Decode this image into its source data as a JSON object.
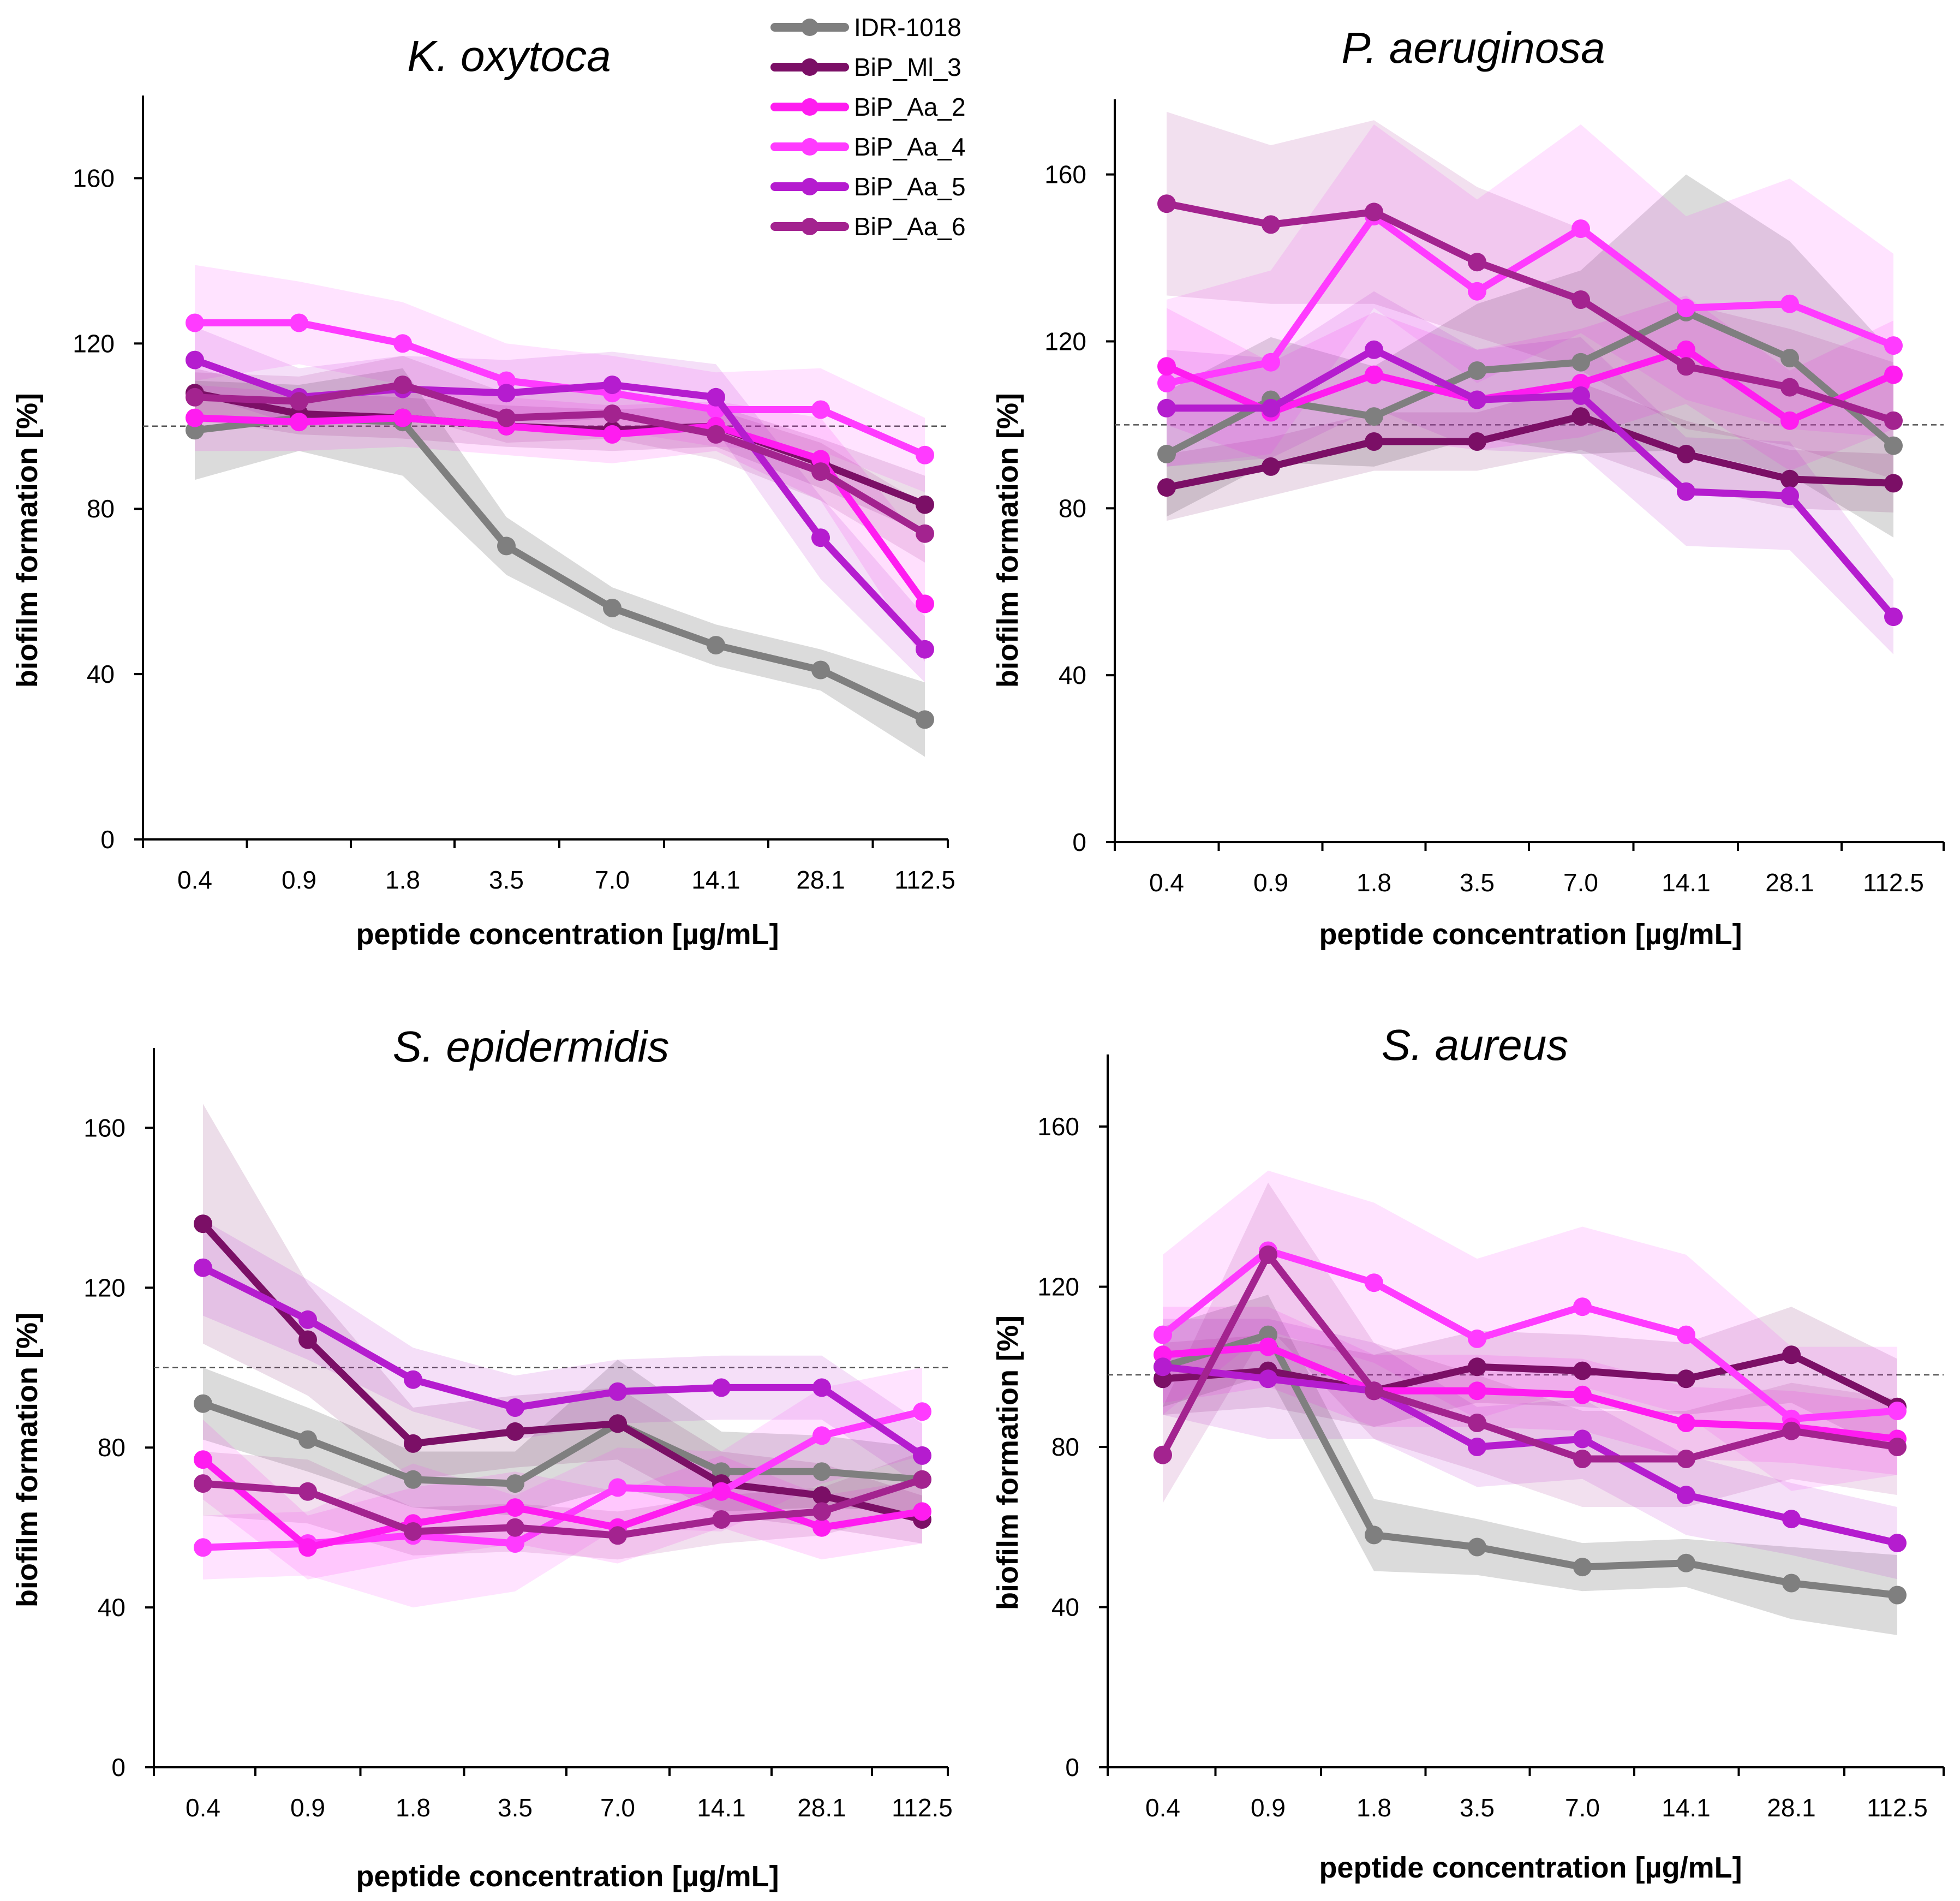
{
  "legend": [
    {
      "name": "IDR-1018",
      "color": "#7f7f7f"
    },
    {
      "name": "BiP_Ml_3",
      "color": "#7b0f66"
    },
    {
      "name": "BiP_Aa_2",
      "color": "#ff1cf0"
    },
    {
      "name": "BiP_Aa_4",
      "color": "#ff3bff"
    },
    {
      "name": "BiP_Aa_5",
      "color": "#b51ccf"
    },
    {
      "name": "BiP_Aa_6",
      "color": "#a3238f"
    }
  ],
  "chart_data": [
    {
      "type": "line",
      "title": "K. oxytoca",
      "xlabel": "peptide concentration [µg/mL]",
      "ylabel": "biofilm formation [%]",
      "categories": [
        "0.4",
        "0.9",
        "1.8",
        "3.5",
        "7.0",
        "14.1",
        "28.1",
        "112.5"
      ],
      "yticks": [
        "0",
        "40",
        "80",
        "120",
        "160"
      ],
      "ylim": [
        0,
        180
      ],
      "reference": 100,
      "series": [
        {
          "name": "IDR-1018",
          "values": [
            99,
            102,
            101,
            71,
            56,
            47,
            41,
            29
          ],
          "band": [
            12,
            8,
            13,
            7,
            5,
            5,
            5,
            9
          ]
        },
        {
          "name": "BiP_Ml_3",
          "values": [
            108,
            103,
            102,
            100,
            99,
            100,
            91,
            81
          ],
          "band": [
            6,
            5,
            5,
            5,
            5,
            5,
            6,
            7
          ]
        },
        {
          "name": "BiP_Aa_2",
          "values": [
            102,
            101,
            102,
            100,
            98,
            100,
            92,
            57
          ],
          "band": [
            8,
            7,
            7,
            7,
            7,
            6,
            10,
            14
          ]
        },
        {
          "name": "BiP_Aa_4",
          "values": [
            125,
            125,
            120,
            111,
            108,
            104,
            104,
            93
          ],
          "band": [
            14,
            10,
            10,
            9,
            9,
            9,
            10,
            9
          ]
        },
        {
          "name": "BiP_Aa_5",
          "values": [
            116,
            107,
            109,
            108,
            110,
            107,
            73,
            46
          ],
          "band": [
            8,
            7,
            8,
            8,
            8,
            8,
            10,
            8
          ]
        },
        {
          "name": "BiP_Aa_6",
          "values": [
            107,
            106,
            110,
            102,
            103,
            98,
            89,
            74
          ],
          "band": [
            6,
            6,
            7,
            6,
            6,
            6,
            7,
            7
          ]
        }
      ]
    },
    {
      "type": "line",
      "title": "P. aeruginosa",
      "xlabel": "peptide concentration [µg/mL]",
      "ylabel": "biofilm formation [%]",
      "categories": [
        "0.4",
        "0.9",
        "1.8",
        "3.5",
        "7.0",
        "14.1",
        "28.1",
        "112.5"
      ],
      "yticks": [
        "0",
        "40",
        "80",
        "120",
        "160"
      ],
      "ylim": [
        0,
        178
      ],
      "reference": 100,
      "series": [
        {
          "name": "IDR-1018",
          "values": [
            93,
            106,
            102,
            113,
            115,
            127,
            116,
            95
          ],
          "band": [
            15,
            15,
            12,
            16,
            22,
            33,
            28,
            22
          ]
        },
        {
          "name": "BiP_Ml_3",
          "values": [
            85,
            90,
            96,
            96,
            102,
            93,
            87,
            86
          ],
          "band": [
            8,
            7,
            7,
            7,
            8,
            8,
            7,
            7
          ]
        },
        {
          "name": "BiP_Aa_2",
          "values": [
            114,
            103,
            112,
            106,
            110,
            118,
            101,
            112
          ],
          "band": [
            14,
            12,
            15,
            12,
            13,
            13,
            12,
            13
          ]
        },
        {
          "name": "BiP_Aa_4",
          "values": [
            110,
            115,
            150,
            132,
            147,
            128,
            129,
            119
          ],
          "band": [
            20,
            22,
            22,
            22,
            25,
            22,
            30,
            22
          ]
        },
        {
          "name": "BiP_Aa_5",
          "values": [
            104,
            104,
            118,
            106,
            107,
            84,
            83,
            54
          ],
          "band": [
            14,
            12,
            14,
            12,
            14,
            13,
            13,
            9
          ]
        },
        {
          "name": "BiP_Aa_6",
          "values": [
            153,
            148,
            151,
            139,
            130,
            114,
            109,
            101
          ],
          "band": [
            22,
            19,
            22,
            18,
            17,
            15,
            14,
            14
          ]
        }
      ]
    },
    {
      "type": "line",
      "title": "S. epidermidis",
      "xlabel": "peptide concentration [µg/mL]",
      "ylabel": "biofilm formation [%]",
      "categories": [
        "0.4",
        "0.9",
        "1.8",
        "3.5",
        "7.0",
        "14.1",
        "28.1",
        "112.5"
      ],
      "yticks": [
        "0",
        "40",
        "80",
        "120",
        "160"
      ],
      "ylim": [
        0,
        180
      ],
      "reference": 100,
      "series": [
        {
          "name": "IDR-1018",
          "values": [
            91,
            82,
            72,
            71,
            86,
            74,
            74,
            72
          ],
          "band": [
            9,
            8,
            7,
            8,
            16,
            10,
            9,
            8
          ]
        },
        {
          "name": "BiP_Ml_3",
          "values": [
            136,
            107,
            81,
            84,
            86,
            71,
            68,
            62
          ],
          "band": [
            30,
            14,
            9,
            9,
            9,
            8,
            8,
            6
          ]
        },
        {
          "name": "BiP_Aa_2",
          "values": [
            77,
            55,
            61,
            65,
            60,
            69,
            60,
            64
          ],
          "band": [
            10,
            8,
            9,
            9,
            9,
            9,
            8,
            8
          ]
        },
        {
          "name": "BiP_Aa_4",
          "values": [
            55,
            56,
            58,
            56,
            70,
            69,
            83,
            89
          ],
          "band": [
            8,
            8,
            18,
            12,
            10,
            10,
            12,
            11
          ]
        },
        {
          "name": "BiP_Aa_5",
          "values": [
            125,
            112,
            97,
            90,
            94,
            95,
            95,
            78
          ],
          "band": [
            12,
            10,
            8,
            8,
            8,
            8,
            8,
            8
          ]
        },
        {
          "name": "BiP_Aa_6",
          "values": [
            71,
            69,
            59,
            60,
            58,
            62,
            64,
            72
          ],
          "band": [
            8,
            8,
            6,
            6,
            6,
            6,
            6,
            7
          ]
        }
      ]
    },
    {
      "type": "line",
      "title": "S. aureus",
      "xlabel": "peptide concentration [µg/mL]",
      "ylabel": "biofilm formation [%]",
      "categories": [
        "0.4",
        "0.9",
        "1.8",
        "3.5",
        "7.0",
        "14.1",
        "28.1",
        "112.5"
      ],
      "yticks": [
        "0",
        "40",
        "80",
        "120",
        "160"
      ],
      "ylim": [
        0,
        178
      ],
      "reference": 98,
      "series": [
        {
          "name": "IDR-1018",
          "values": [
            100,
            108,
            58,
            55,
            50,
            51,
            46,
            43
          ],
          "band": [
            10,
            10,
            9,
            7,
            6,
            6,
            9,
            10
          ]
        },
        {
          "name": "BiP_Ml_3",
          "values": [
            97,
            99,
            94,
            100,
            99,
            97,
            103,
            90
          ],
          "band": [
            9,
            9,
            9,
            9,
            9,
            9,
            12,
            12
          ]
        },
        {
          "name": "BiP_Aa_2",
          "values": [
            103,
            105,
            94,
            94,
            93,
            86,
            85,
            82
          ],
          "band": [
            12,
            10,
            9,
            9,
            9,
            9,
            9,
            9
          ]
        },
        {
          "name": "BiP_Aa_4",
          "values": [
            108,
            129,
            121,
            107,
            115,
            108,
            87,
            89
          ],
          "band": [
            20,
            20,
            20,
            20,
            20,
            20,
            18,
            16
          ]
        },
        {
          "name": "BiP_Aa_5",
          "values": [
            100,
            97,
            94,
            80,
            82,
            68,
            62,
            56
          ],
          "band": [
            12,
            15,
            12,
            10,
            10,
            10,
            9,
            9
          ]
        },
        {
          "name": "BiP_Aa_6",
          "values": [
            78,
            128,
            94,
            86,
            77,
            77,
            84,
            80
          ],
          "band": [
            12,
            18,
            12,
            12,
            12,
            12,
            12,
            12
          ]
        }
      ]
    }
  ]
}
